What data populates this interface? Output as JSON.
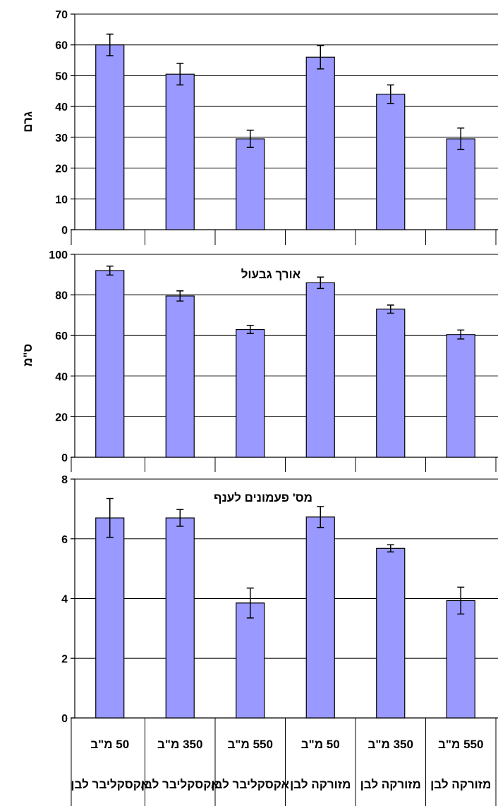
{
  "chart_data": [
    {
      "type": "bar",
      "title": "",
      "ylabel": "גרם",
      "ylim": [
        0,
        70
      ],
      "yticks": [
        0,
        10,
        20,
        30,
        40,
        50,
        60,
        70
      ],
      "values": [
        60,
        50.5,
        29.5,
        56,
        44,
        29.5
      ],
      "errors": [
        3.5,
        3.5,
        2.8,
        3.8,
        3,
        3.5
      ],
      "bar_color": "#9999ff",
      "grid": true
    },
    {
      "type": "bar",
      "title": "אורך גבעול",
      "ylabel": "ס\"מ",
      "ylim": [
        0,
        100
      ],
      "yticks": [
        0,
        20,
        40,
        60,
        80,
        100
      ],
      "values": [
        92,
        79.5,
        63,
        86,
        73,
        60.5
      ],
      "errors": [
        2.2,
        2.5,
        2,
        2.8,
        2,
        2.2
      ],
      "bar_color": "#9999ff",
      "grid": true
    },
    {
      "type": "bar",
      "title": "מס' פעמונים לענף",
      "ylabel": "",
      "ylim": [
        0,
        8
      ],
      "yticks": [
        0,
        2,
        4,
        6,
        8
      ],
      "values": [
        6.7,
        6.7,
        3.85,
        6.73,
        5.68,
        3.93
      ],
      "errors": [
        0.65,
        0.28,
        0.5,
        0.35,
        0.12,
        0.45
      ],
      "bar_color": "#9999ff",
      "grid": true
    }
  ],
  "categories": {
    "rate": [
      "50 מ\"ב",
      "350 מ\"ב",
      "550 מ\"ב",
      "50 מ\"ב",
      "350 מ\"ב",
      "550 מ\"ב"
    ],
    "variety": [
      "אקסקליבר לבן",
      "אקסקליבר לבן",
      "אקסקליבר לבן",
      "מזורקה לבן",
      "מזורקה לבן",
      "מזורקה לבן"
    ]
  }
}
